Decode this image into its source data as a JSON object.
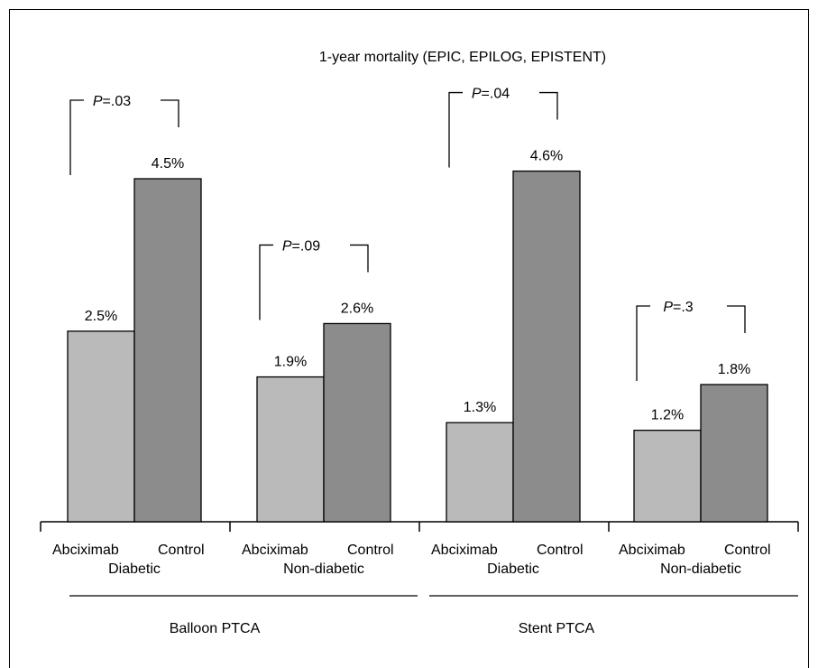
{
  "chart_data": {
    "type": "bar",
    "title": "1-year mortality (EPIC, EPILOG, EPISTENT)",
    "groups": [
      {
        "category_label": "Diabetic",
        "procedure": "Balloon PTCA",
        "bars": [
          {
            "label": "Abciximab",
            "value": 2.5,
            "value_label": "2.5%"
          },
          {
            "label": "Control",
            "value": 4.5,
            "value_label": "4.5%"
          }
        ],
        "p_label": "=.03"
      },
      {
        "category_label": "Non-diabetic",
        "procedure": "Balloon PTCA",
        "bars": [
          {
            "label": "Abciximab",
            "value": 1.9,
            "value_label": "1.9%"
          },
          {
            "label": "Control",
            "value": 2.6,
            "value_label": "2.6%"
          }
        ],
        "p_label": "=.09"
      },
      {
        "category_label": "Diabetic",
        "procedure": "Stent PTCA",
        "bars": [
          {
            "label": "Abciximab",
            "value": 1.3,
            "value_label": "1.3%"
          },
          {
            "label": "Control",
            "value": 4.6,
            "value_label": "4.6%"
          }
        ],
        "p_label": "=.04"
      },
      {
        "category_label": "Non-diabetic",
        "procedure": "Stent PTCA",
        "bars": [
          {
            "label": "Abciximab",
            "value": 1.2,
            "value_label": "1.2%"
          },
          {
            "label": "Control",
            "value": 1.8,
            "value_label": "1.8%"
          }
        ],
        "p_label": "=.3"
      }
    ],
    "p_prefix": "P",
    "procedures": [
      "Balloon PTCA",
      "Stent PTCA"
    ],
    "colors": {
      "abciximab": "#bababa",
      "control": "#8c8c8c",
      "stroke": "#000000"
    },
    "ylim": [
      0,
      5
    ]
  }
}
